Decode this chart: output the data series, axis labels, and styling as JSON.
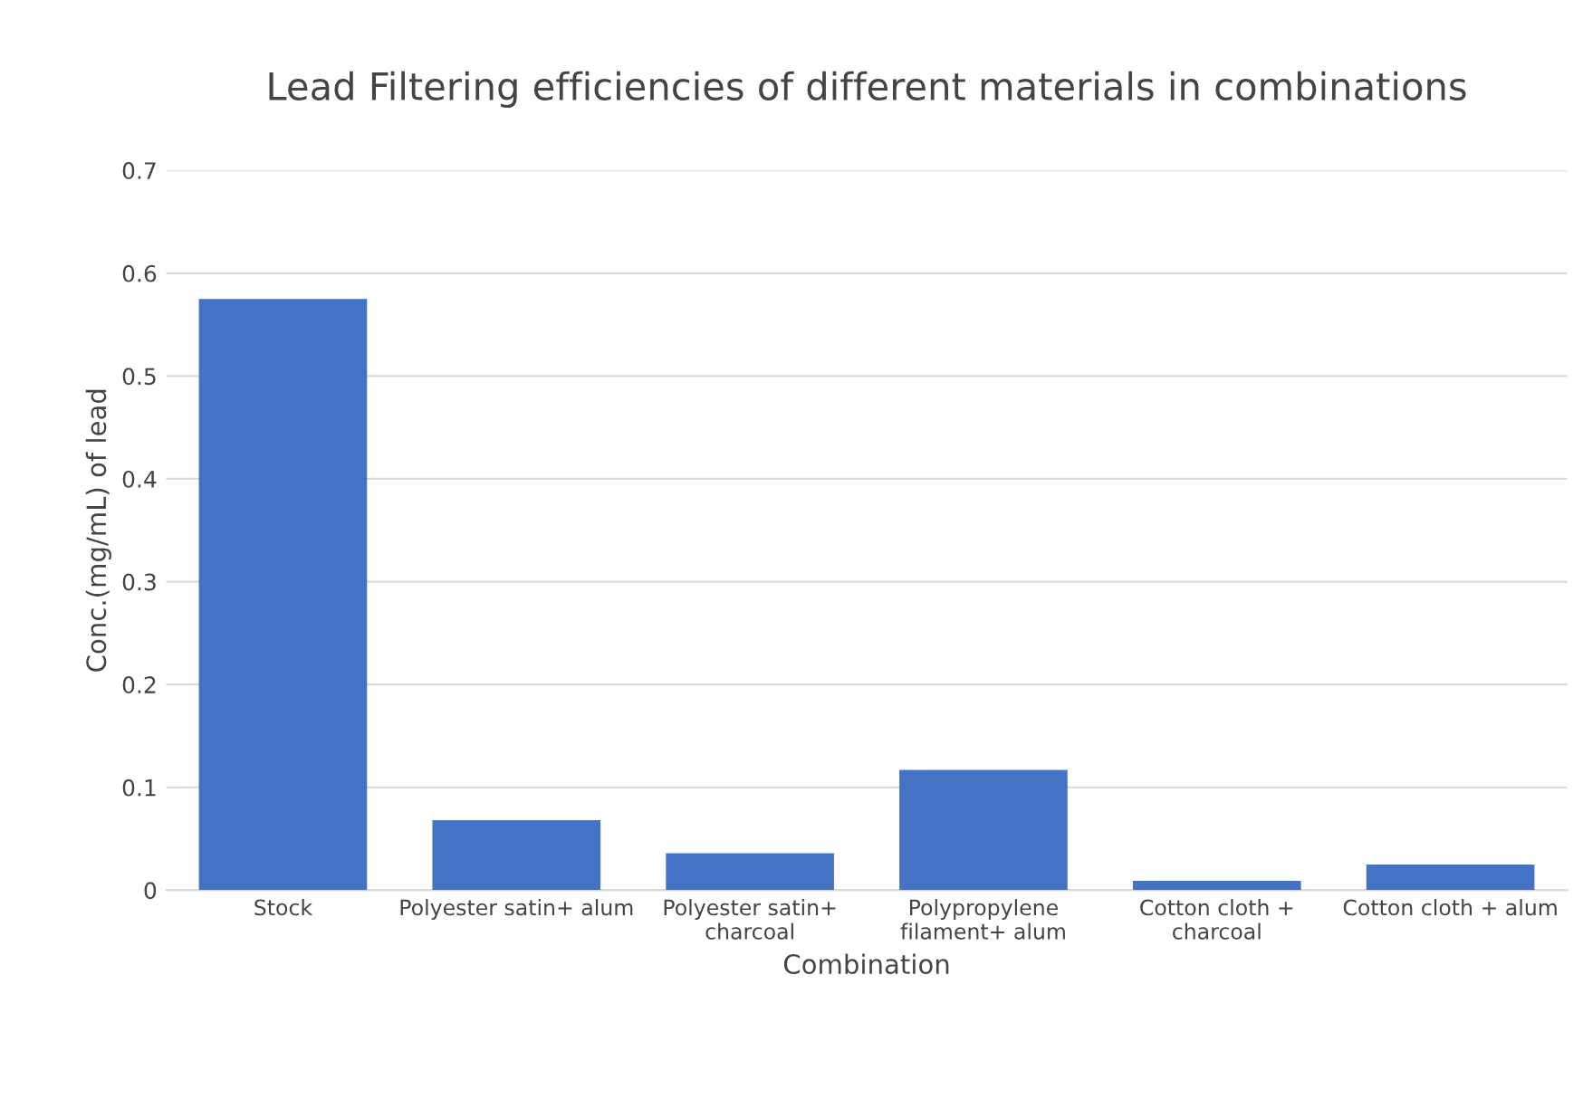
{
  "chart_data": {
    "type": "bar",
    "title": "Lead Filtering efficiencies of different materials in combinations",
    "xlabel": "Combination",
    "ylabel": "Conc.(mg/mL) of lead",
    "categories": [
      "Stock",
      "Polyester satin+ alum",
      "Polyester satin+\ncharcoal",
      "Polypropylene\nfilament+ alum",
      "Cotton cloth +\ncharcoal",
      "Cotton cloth + alum"
    ],
    "values": [
      0.575,
      0.068,
      0.036,
      0.117,
      0.009,
      0.025
    ],
    "color": "#4472c4",
    "ylim": [
      0,
      0.7
    ],
    "yticks": [
      0,
      0.1,
      0.2,
      0.3,
      0.4,
      0.5,
      0.6,
      0.7
    ],
    "grid": "y"
  }
}
